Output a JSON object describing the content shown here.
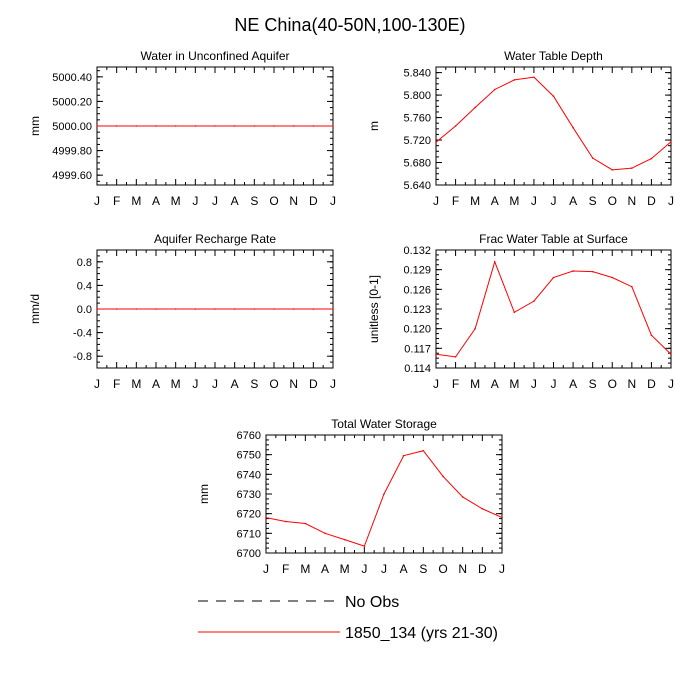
{
  "title": "NE China(40-50N,100-130E)",
  "colors": {
    "series": "#ff0000",
    "axis": "#000000",
    "obs": "#000000"
  },
  "legend": {
    "items": [
      {
        "label": "No Obs",
        "style": "dashed",
        "color": "#000000"
      },
      {
        "label": "1850_134 (yrs 21-30)",
        "style": "solid",
        "color": "#ff0000"
      }
    ]
  },
  "chart_data": [
    {
      "type": "line",
      "title": "Water in Unconfined Aquifer",
      "ylabel": "mm",
      "categories": [
        "J",
        "F",
        "M",
        "A",
        "M",
        "J",
        "J",
        "A",
        "S",
        "O",
        "N",
        "D",
        "J"
      ],
      "yticks": [
        4999.6,
        4999.8,
        5000.0,
        5000.2,
        5000.4
      ],
      "ytick_labels": [
        "4999.60",
        "4999.80",
        "5000.00",
        "5000.20",
        "5000.40"
      ],
      "ylim": [
        4999.52,
        5000.48
      ],
      "series": [
        {
          "values": [
            5000.0,
            5000.0,
            5000.0,
            5000.0,
            5000.0,
            5000.0,
            5000.0,
            5000.0,
            5000.0,
            5000.0,
            5000.0,
            5000.0,
            5000.0
          ]
        }
      ]
    },
    {
      "type": "line",
      "title": "Water Table Depth",
      "ylabel": "m",
      "categories": [
        "J",
        "F",
        "M",
        "A",
        "M",
        "J",
        "J",
        "A",
        "S",
        "O",
        "N",
        "D",
        "J"
      ],
      "yticks": [
        5.64,
        5.68,
        5.72,
        5.76,
        5.8,
        5.84
      ],
      "ytick_labels": [
        "5.640",
        "5.680",
        "5.720",
        "5.760",
        "5.800",
        "5.840"
      ],
      "ylim": [
        5.64,
        5.85
      ],
      "series": [
        {
          "values": [
            5.716,
            5.745,
            5.778,
            5.81,
            5.827,
            5.832,
            5.798,
            5.742,
            5.688,
            5.667,
            5.67,
            5.687,
            5.717
          ]
        }
      ]
    },
    {
      "type": "line",
      "title": "Aquifer Recharge Rate",
      "ylabel": "mm/d",
      "categories": [
        "J",
        "F",
        "M",
        "A",
        "M",
        "J",
        "J",
        "A",
        "S",
        "O",
        "N",
        "D",
        "J"
      ],
      "yticks": [
        -0.8,
        -0.4,
        0.0,
        0.4,
        0.8
      ],
      "ytick_labels": [
        "-0.8",
        "-0.4",
        "0.0",
        "0.4",
        "0.8"
      ],
      "ylim": [
        -1.0,
        1.0
      ],
      "series": [
        {
          "values": [
            0,
            0,
            0,
            0,
            0,
            0,
            0,
            0,
            0,
            0,
            0,
            0,
            0
          ]
        }
      ]
    },
    {
      "type": "line",
      "title": "Frac Water Table at Surface",
      "ylabel": "unitless [0-1]",
      "categories": [
        "J",
        "F",
        "M",
        "A",
        "M",
        "J",
        "J",
        "A",
        "S",
        "O",
        "N",
        "D",
        "J"
      ],
      "yticks": [
        0.114,
        0.117,
        0.12,
        0.123,
        0.126,
        0.129,
        0.132
      ],
      "ytick_labels": [
        "0.114",
        "0.117",
        "0.120",
        "0.123",
        "0.126",
        "0.129",
        "0.132"
      ],
      "ylim": [
        0.114,
        0.132
      ],
      "series": [
        {
          "values": [
            0.1161,
            0.1157,
            0.12,
            0.1302,
            0.1225,
            0.1242,
            0.1278,
            0.1288,
            0.1287,
            0.1278,
            0.1264,
            0.119,
            0.1161
          ]
        }
      ]
    },
    {
      "type": "line",
      "title": "Total Water Storage",
      "ylabel": "mm",
      "categories": [
        "J",
        "F",
        "M",
        "A",
        "M",
        "J",
        "J",
        "A",
        "S",
        "O",
        "N",
        "D",
        "J"
      ],
      "yticks": [
        6700,
        6710,
        6720,
        6730,
        6740,
        6750,
        6760
      ],
      "ytick_labels": [
        "6700",
        "6710",
        "6720",
        "6730",
        "6740",
        "6750",
        "6760"
      ],
      "ylim": [
        6700,
        6760
      ],
      "series": [
        {
          "values": [
            6718,
            6716,
            6715,
            6710,
            6706.8,
            6703.5,
            6730,
            6749.5,
            6752,
            6739,
            6728.5,
            6722.5,
            6718
          ]
        }
      ]
    }
  ]
}
